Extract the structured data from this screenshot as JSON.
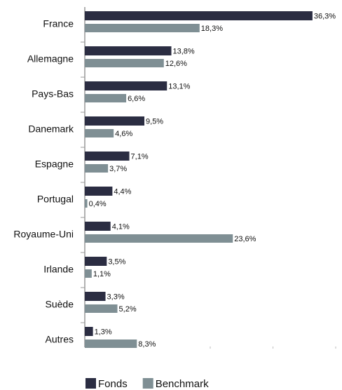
{
  "chart_data": {
    "type": "bar",
    "orientation": "horizontal",
    "categories": [
      "France",
      "Allemagne",
      "Pays-Bas",
      "Danemark",
      "Espagne",
      "Portugal",
      "Royaume-Uni",
      "Irlande",
      "Suède",
      "Autres"
    ],
    "series": [
      {
        "name": "Fonds",
        "color": "#2b2d42",
        "values": [
          36.3,
          13.8,
          13.1,
          9.5,
          7.1,
          4.4,
          4.1,
          3.5,
          3.3,
          1.3
        ],
        "value_labels": [
          "36,3%",
          "13,8%",
          "13,1%",
          "9,5%",
          "7,1%",
          "4,4%",
          "4,1%",
          "3,5%",
          "3,3%",
          "1,3%"
        ]
      },
      {
        "name": "Benchmark",
        "color": "#7f8f94",
        "values": [
          18.3,
          12.6,
          6.6,
          4.6,
          3.7,
          0.4,
          23.6,
          1.1,
          5.2,
          8.3
        ],
        "value_labels": [
          "18,3%",
          "12,6%",
          "6,6%",
          "4,6%",
          "3,7%",
          "0,4%",
          "23,6%",
          "1,1%",
          "5,2%",
          "8,3%"
        ]
      }
    ],
    "xlim": [
      0,
      40
    ],
    "xticks": [
      20,
      30,
      40
    ],
    "legend": "bottom"
  }
}
